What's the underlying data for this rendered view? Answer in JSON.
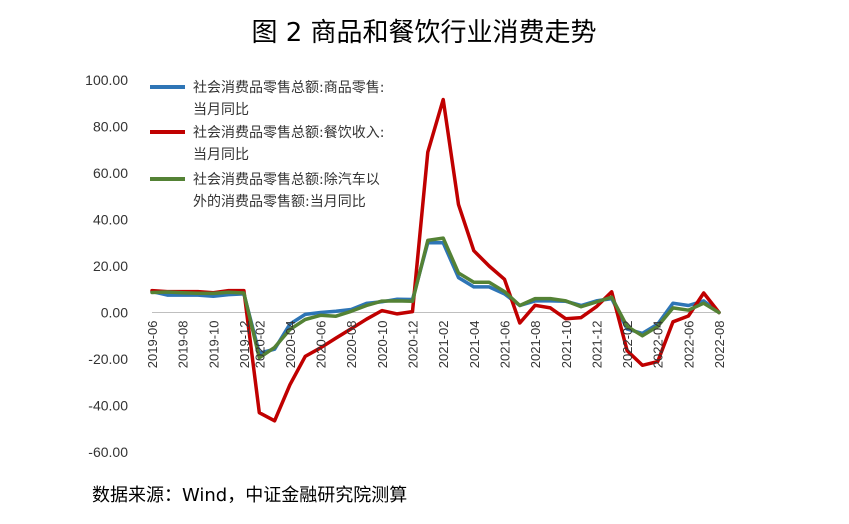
{
  "chart_data": {
    "type": "line",
    "title": "图 2 商品和餐饮行业消费走势",
    "source": "数据来源：Wind，中证金融研究院测算",
    "ylim": [
      -60,
      100
    ],
    "yticks": [
      "100.00",
      "80.00",
      "60.00",
      "40.00",
      "20.00",
      "0.00",
      "-20.00",
      "-40.00",
      "-60.00"
    ],
    "ytick_values": [
      100,
      80,
      60,
      40,
      20,
      0,
      -20,
      -40,
      -60
    ],
    "grid": false,
    "legend_position": "top-left",
    "x": [
      "2019-06",
      "2019-07",
      "2019-08",
      "2019-09",
      "2019-10",
      "2019-11",
      "2019-12",
      "2020-02",
      "2020-03",
      "2020-04",
      "2020-05",
      "2020-06",
      "2020-07",
      "2020-08",
      "2020-09",
      "2020-10",
      "2020-11",
      "2020-12",
      "2021-01",
      "2021-02",
      "2021-03",
      "2021-04",
      "2021-05",
      "2021-06",
      "2021-07",
      "2021-08",
      "2021-09",
      "2021-10",
      "2021-11",
      "2021-12",
      "2022-01",
      "2022-02",
      "2022-03",
      "2022-04",
      "2022-05",
      "2022-06",
      "2022-07",
      "2022-08"
    ],
    "xtick_labels": [
      "2019-06",
      "2019-08",
      "2019-10",
      "2019-12",
      "2020-02",
      "2020-04",
      "2020-06",
      "2020-08",
      "2020-10",
      "2020-12",
      "2021-02",
      "2021-04",
      "2021-06",
      "2021-08",
      "2021-10",
      "2021-12",
      "2022-02",
      "2022-04",
      "2022-06",
      "2022-08"
    ],
    "series": [
      {
        "name": "社会消费品零售总额:商品零售:当月同比",
        "legend_lines": [
          "社会消费品零售总额:商品零售:",
          "当月同比"
        ],
        "color": "#2e75b6",
        "values": [
          9.0,
          7.5,
          7.5,
          7.5,
          7.0,
          7.7,
          8.0,
          -17.5,
          -15.8,
          -5.0,
          -0.8,
          0.0,
          0.5,
          1.3,
          3.9,
          4.6,
          5.7,
          5.6,
          30.0,
          30.0,
          15.0,
          11.0,
          11.0,
          8.0,
          3.0,
          5.0,
          5.0,
          4.8,
          3.0,
          5.0,
          6.0,
          -7.1,
          -9.0,
          -5.0,
          4.0,
          3.0,
          5.0,
          0.0
        ]
      },
      {
        "name": "社会消费品零售总额:餐饮收入:当月同比",
        "legend_lines": [
          "社会消费品零售总额:餐饮收入:",
          "当月同比"
        ],
        "color": "#c00000",
        "values": [
          9.4,
          9.0,
          9.0,
          9.0,
          8.5,
          9.4,
          9.4,
          -43.1,
          -46.6,
          -31.1,
          -18.9,
          -15.2,
          -11.0,
          -7.0,
          -2.9,
          0.8,
          -0.6,
          0.4,
          69.0,
          91.6,
          46.4,
          26.6,
          20.0,
          14.3,
          -4.5,
          3.1,
          2.0,
          -2.7,
          -2.2,
          2.5,
          8.9,
          -16.4,
          -22.7,
          -21.1,
          -4.0,
          -1.5,
          8.4,
          0.0
        ]
      },
      {
        "name": "社会消费品零售总额:除汽车以外的消费品零售额:当月同比",
        "legend_lines": [
          "社会消费品零售总额:除汽车以",
          "外的消费品零售额:当月同比"
        ],
        "color": "#548235",
        "values": [
          8.6,
          8.8,
          8.5,
          8.3,
          8.2,
          8.7,
          8.4,
          -19.5,
          -15.0,
          -7.3,
          -3.0,
          -1.2,
          -1.6,
          0.5,
          3.0,
          4.9,
          5.0,
          4.8,
          31.0,
          32.0,
          17.0,
          13.0,
          13.0,
          9.0,
          3.0,
          6.0,
          6.0,
          5.0,
          2.5,
          4.5,
          6.6,
          -6.0,
          -10.0,
          -6.0,
          2.0,
          1.0,
          4.0,
          0.0
        ]
      }
    ]
  }
}
